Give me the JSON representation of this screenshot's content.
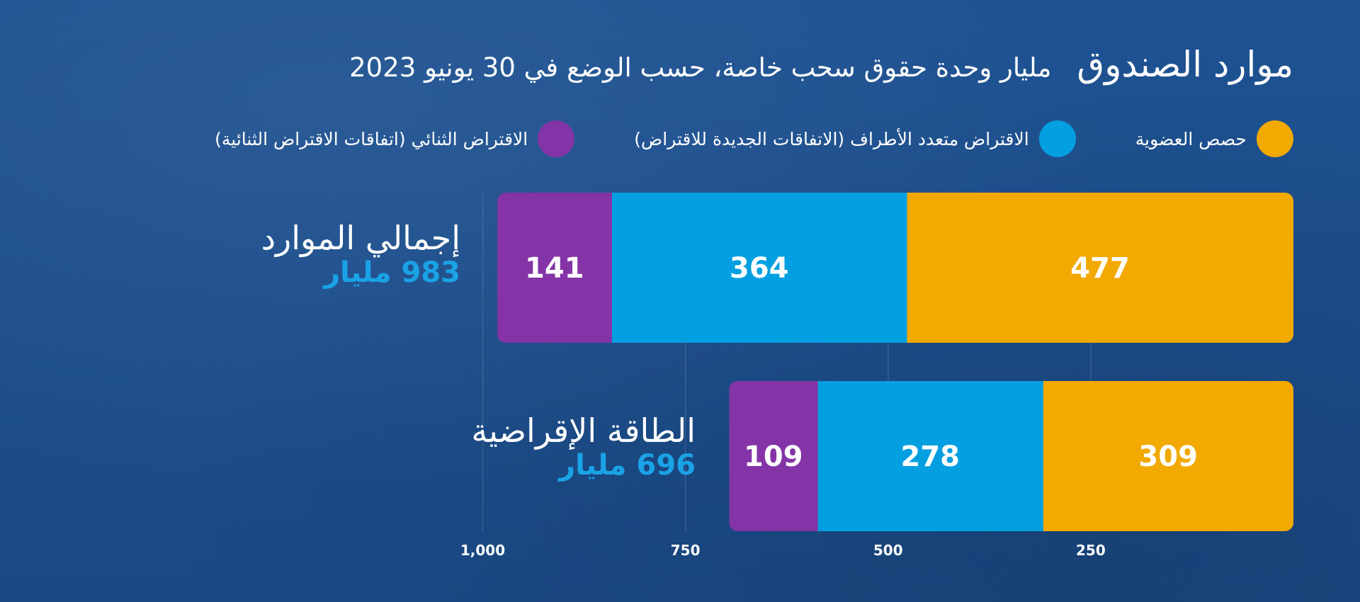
{
  "title": {
    "main": "موارد الصندوق",
    "sub": "مليار وحدة حقوق سحب خاصة، حسب الوضع في 30 يونيو 2023"
  },
  "colors": {
    "quota": "#f2a900",
    "multilateral": "#049fe0",
    "bilateral": "#8434a7",
    "total_text": "#1aa3e6",
    "background": "#1c4f8e"
  },
  "legend": [
    {
      "label": "حصص العضوية",
      "color": "#f2a900"
    },
    {
      "label": "الاقتراض متعدد الأطراف (الاتفاقات الجديدة للاقتراض)",
      "color": "#049fe0"
    },
    {
      "label": "الاقتراض الثنائي (اتفاقات الاقتراض الثنائية)",
      "color": "#8434a7"
    }
  ],
  "rows": [
    {
      "name": "إجمالي الموارد",
      "total": "983 مليار"
    },
    {
      "name": "الطاقة الإقراضية",
      "total": "696 مليار"
    }
  ],
  "chart_data": {
    "type": "bar",
    "orientation": "horizontal-stacked",
    "direction": "right-to-left",
    "title": "موارد الصندوق",
    "subtitle": "مليار وحدة حقوق سحب خاصة، حسب الوضع في 30 يونيو 2023",
    "categories": [
      "إجمالي الموارد",
      "الطاقة الإقراضية"
    ],
    "series": [
      {
        "name": "حصص العضوية",
        "values": [
          477,
          309
        ],
        "color": "#f2a900"
      },
      {
        "name": "الاقتراض متعدد الأطراف (الاتفاقات الجديدة للاقتراض)",
        "values": [
          364,
          278
        ],
        "color": "#049fe0"
      },
      {
        "name": "الاقتراض الثنائي (اتفاقات الاقتراض الثنائية)",
        "values": [
          141,
          109
        ],
        "color": "#8434a7"
      }
    ],
    "totals": [
      "983 مليار",
      "696 مليار"
    ],
    "x_ticks": [
      250,
      500,
      750,
      1000
    ],
    "x_tick_labels": [
      "250",
      "500",
      "750",
      "1,000"
    ],
    "xlim": [
      0,
      983
    ],
    "grid": true,
    "legend_position": "top"
  }
}
